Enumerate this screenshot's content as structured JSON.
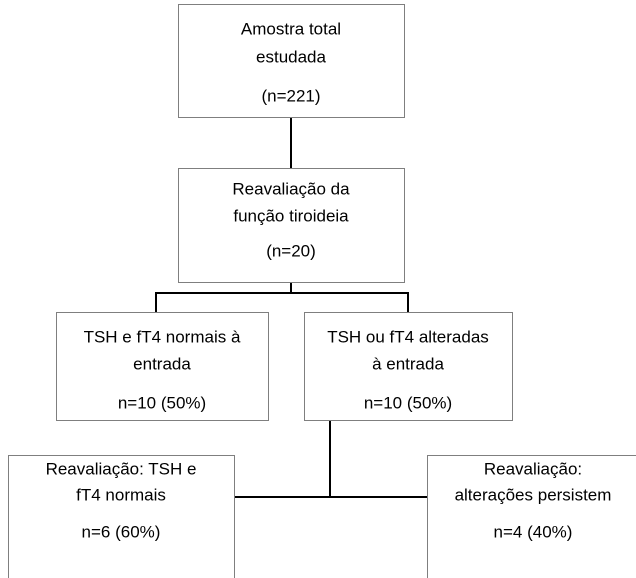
{
  "nodes": [
    {
      "lines": [
        "Amostra total",
        "estudada",
        "(n=221)"
      ]
    },
    {
      "lines": [
        "Reavaliação da",
        "função tiroideia",
        "(n=20)"
      ]
    },
    {
      "lines": [
        "TSH e fT4 normais à",
        "entrada",
        "n=10 (50%)"
      ]
    },
    {
      "lines": [
        "TSH ou fT4 alteradas",
        "à entrada",
        "n=10 (50%)"
      ]
    },
    {
      "lines": [
        "Reavaliação: TSH e",
        "fT4 normais",
        "n=6 (60%)"
      ]
    },
    {
      "lines": [
        "Reavaliação:",
        "alterações persistem",
        "n=4 (40%)"
      ]
    }
  ]
}
